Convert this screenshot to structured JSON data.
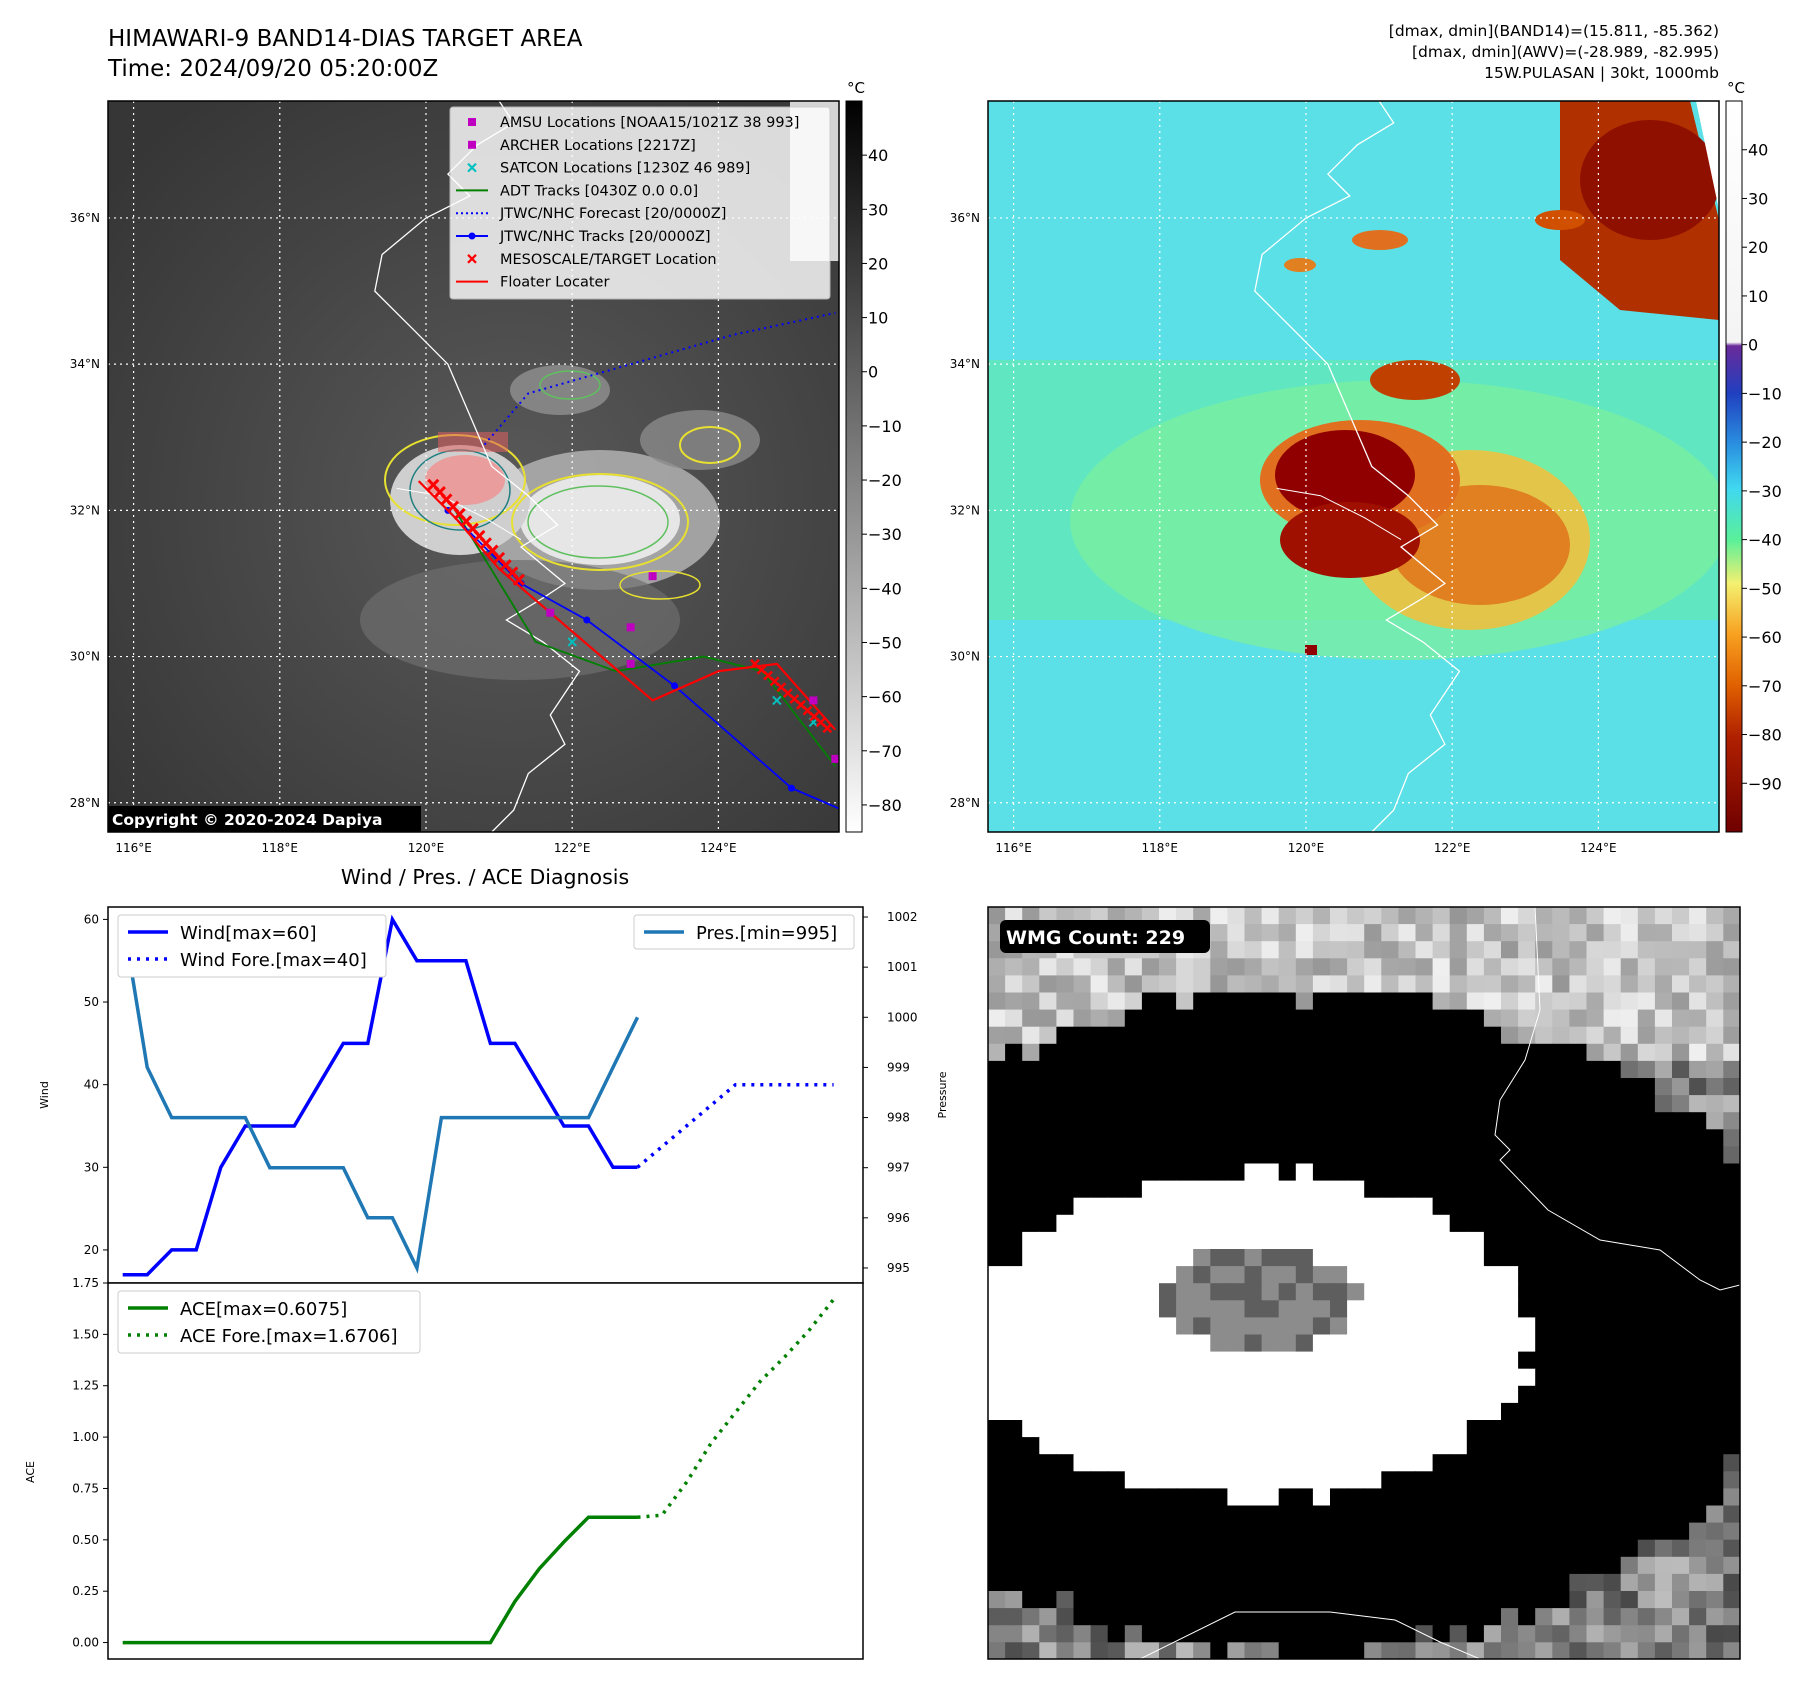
{
  "header": {
    "title": "HIMAWARI-9 BAND14-DIAS TARGET AREA",
    "time": "Time: 2024/09/20 05:20:00Z",
    "info": [
      "[dmax, dmin](BAND14)=(15.811, -85.362)",
      "[dmax, dmin](AWV)=(-28.989, -82.995)",
      "15W.PULASAN | 30kt, 1000mb"
    ]
  },
  "maps": {
    "lon_ticks": [
      "116°E",
      "118°E",
      "120°E",
      "122°E",
      "124°E"
    ],
    "lat_ticks": [
      "28°N",
      "30°N",
      "32°N",
      "34°N",
      "36°N"
    ],
    "lon_range": [
      115.65,
      125.65
    ],
    "lat_range": [
      27.6,
      37.6
    ],
    "copyright": "Copyright © 2020-2024 Dapiya"
  },
  "ir_colorbar": {
    "unit": "°C",
    "ticks": [
      40,
      30,
      20,
      10,
      0,
      -10,
      -20,
      -30,
      -40,
      -50,
      -60,
      -70,
      -80
    ],
    "range": [
      -85,
      50
    ]
  },
  "awv_colorbar": {
    "unit": "°C",
    "ticks": [
      40,
      30,
      20,
      10,
      0,
      -10,
      -20,
      -30,
      -40,
      -50,
      -60,
      -70,
      -80,
      -90
    ],
    "range": [
      -100,
      50
    ]
  },
  "legend": [
    {
      "label": "AMSU Locations [NOAA15/1021Z 38 993]",
      "marker": "square",
      "color": "#c000c0"
    },
    {
      "label": "ARCHER Locations [2217Z]",
      "marker": "square",
      "color": "#c000c0"
    },
    {
      "label": "SATCON Locations [1230Z 46 989]",
      "marker": "x",
      "color": "#00c0c0"
    },
    {
      "label": "ADT Tracks [0430Z 0.0 0.0]",
      "marker": "line",
      "color": "#008000"
    },
    {
      "label": "JTWC/NHC Forecast [20/0000Z]",
      "marker": "dotted",
      "color": "#0000ff"
    },
    {
      "label": "JTWC/NHC Tracks [20/0000Z]",
      "marker": "line-dot",
      "color": "#0000ff"
    },
    {
      "label": "MESOSCALE/TARGET Location",
      "marker": "x",
      "color": "#ff0000"
    },
    {
      "label": "Floater Locater",
      "marker": "line",
      "color": "#ff0000"
    }
  ],
  "tracks": {
    "jtwc_track": [
      [
        125.7,
        27.9
      ],
      [
        125.0,
        28.2
      ],
      [
        123.4,
        29.6
      ],
      [
        122.2,
        30.5
      ],
      [
        121.3,
        31.0
      ],
      [
        120.3,
        32.0
      ]
    ],
    "jtwc_forecast": [
      [
        120.8,
        32.9
      ],
      [
        121.4,
        33.6
      ],
      [
        122.8,
        34.0
      ],
      [
        124.2,
        34.4
      ],
      [
        125.6,
        34.7
      ]
    ],
    "floater": [
      [
        125.6,
        29.0
      ],
      [
        124.8,
        29.9
      ],
      [
        124.0,
        29.8
      ],
      [
        123.1,
        29.4
      ],
      [
        121.0,
        31.2
      ],
      [
        120.4,
        31.9
      ],
      [
        119.9,
        32.4
      ]
    ],
    "adt": [
      [
        125.6,
        28.5
      ],
      [
        124.6,
        29.8
      ],
      [
        123.8,
        30.0
      ],
      [
        122.6,
        29.8
      ],
      [
        121.5,
        30.2
      ],
      [
        120.4,
        32.0
      ]
    ],
    "amsu": [
      [
        123.1,
        31.1
      ],
      [
        122.8,
        30.4
      ],
      [
        121.7,
        30.6
      ],
      [
        122.8,
        29.9
      ],
      [
        125.3,
        29.4
      ],
      [
        125.6,
        28.6
      ]
    ],
    "satcon": [
      [
        122.0,
        30.2
      ],
      [
        124.8,
        29.4
      ],
      [
        125.3,
        29.1
      ]
    ]
  },
  "chart_data": [
    {
      "type": "line",
      "title": "Wind / Pres. / ACE Diagnosis",
      "ylabel": "Wind",
      "y2label": "Pressure",
      "ylim": [
        16,
        61.5
      ],
      "y2lim": [
        994.7,
        1002.2
      ],
      "yticks": [
        20,
        30,
        40,
        50,
        60
      ],
      "y2ticks": [
        995,
        996,
        997,
        998,
        999,
        1000,
        1001,
        1002
      ],
      "x": [
        0,
        1,
        2,
        3,
        4,
        5,
        6,
        7,
        8,
        9,
        10,
        11,
        12,
        13,
        14,
        15,
        16,
        17,
        18,
        19,
        20,
        21
      ],
      "series": [
        {
          "name": "Wind[max=60]",
          "axis": "left",
          "style": "solid",
          "color": "#0000ff",
          "values": [
            17,
            17,
            20,
            20,
            30,
            35,
            35,
            35,
            40,
            45,
            45,
            60,
            55,
            55,
            55,
            45,
            45,
            40,
            35,
            35,
            30,
            30
          ]
        },
        {
          "name": "Wind Fore.[max=40]",
          "axis": "left",
          "style": "dotted",
          "color": "#0000ff",
          "x": [
            21,
            23,
            25,
            27,
            29
          ],
          "values": [
            30,
            35,
            40,
            40,
            40
          ]
        },
        {
          "name": "Pres.[min=995]",
          "axis": "right",
          "style": "solid",
          "color": "#1f77b4",
          "values": [
            1002,
            999,
            998,
            998,
            998,
            998,
            997,
            997,
            997,
            997,
            996,
            996,
            995,
            998,
            998,
            998,
            998,
            998,
            998,
            998,
            999,
            1000
          ]
        }
      ]
    },
    {
      "type": "line",
      "ylabel": "ACE",
      "ylim": [
        -0.08,
        1.75
      ],
      "yticks": [
        0.0,
        0.25,
        0.5,
        0.75,
        1.0,
        1.25,
        1.5,
        1.75
      ],
      "ytick_labels": [
        "0.00",
        "0.25",
        "0.50",
        "0.75",
        "1.00",
        "1.25",
        "1.50",
        "1.75"
      ],
      "x": [
        0,
        1,
        2,
        3,
        4,
        5,
        6,
        7,
        8,
        9,
        10,
        11,
        12,
        13,
        14,
        15,
        16,
        17,
        18,
        19,
        20,
        21
      ],
      "series": [
        {
          "name": "ACE[max=0.6075]",
          "style": "solid",
          "color": "#008000",
          "values": [
            0,
            0,
            0,
            0,
            0,
            0,
            0,
            0,
            0,
            0,
            0,
            0,
            0,
            0,
            0,
            0,
            0.2,
            0.36,
            0.49,
            0.61,
            0.61,
            0.61
          ]
        },
        {
          "name": "ACE Fore.[max=1.6706]",
          "style": "dotted",
          "color": "#008000",
          "x": [
            21,
            22,
            23,
            24,
            25,
            26,
            27,
            28,
            29
          ],
          "values": [
            0.61,
            0.62,
            0.78,
            0.97,
            1.12,
            1.27,
            1.39,
            1.52,
            1.67
          ]
        }
      ]
    }
  ],
  "wmg": {
    "label": "WMG Count: 229"
  }
}
